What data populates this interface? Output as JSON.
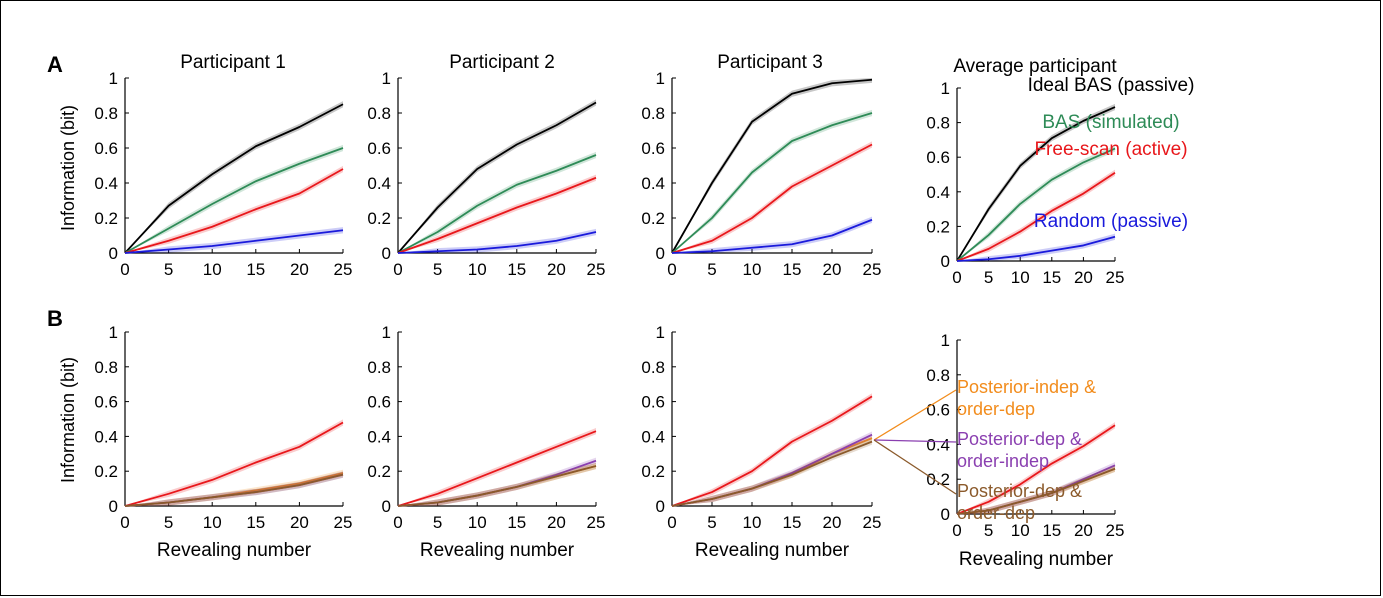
{
  "figure": {
    "panel_labels": [
      "A",
      "B"
    ],
    "ylabel": "Information (bit)",
    "xlabel": "Revealing number",
    "titles": [
      "Participant 1",
      "Participant 2",
      "Participant 3",
      "Average participant"
    ],
    "x_ticks": [
      "0",
      "5",
      "10",
      "15",
      "20",
      "25"
    ],
    "y_ticks": [
      "0",
      "0.2",
      "0.4",
      "0.6",
      "0.8",
      "1"
    ],
    "legend_A": [
      {
        "label": "Ideal BAS (passive)",
        "color": "#000000"
      },
      {
        "label": "BAS (simulated)",
        "color": "#2e8b57"
      },
      {
        "label": "Free-scan (active)",
        "color": "#e8171b"
      },
      {
        "label": "Random (passive)",
        "color": "#1a1adb"
      }
    ],
    "legend_B": [
      {
        "label_lines": [
          "Posterior-indep &",
          "order-dep"
        ],
        "color": "#f28c1c"
      },
      {
        "label_lines": [
          "Posterior-dep &",
          "order-indep"
        ],
        "color": "#8a3fb0"
      },
      {
        "label_lines": [
          "Posterior-dep &",
          "order-dep"
        ],
        "color": "#8b5a2b"
      }
    ]
  },
  "chart_data": [
    {
      "type": "line",
      "panel": "A",
      "title": "Participant 1",
      "xlim": [
        0,
        25
      ],
      "ylim": [
        0,
        1
      ],
      "x": [
        0,
        5,
        10,
        15,
        20,
        25
      ],
      "series": [
        {
          "name": "Ideal BAS (passive)",
          "color": "#000000",
          "values": [
            0,
            0.27,
            0.45,
            0.61,
            0.72,
            0.85
          ]
        },
        {
          "name": "BAS (simulated)",
          "color": "#2e8b57",
          "values": [
            0,
            0.14,
            0.28,
            0.41,
            0.51,
            0.6
          ]
        },
        {
          "name": "Free-scan (active)",
          "color": "#e8171b",
          "values": [
            0,
            0.07,
            0.15,
            0.25,
            0.34,
            0.48
          ]
        },
        {
          "name": "Random (passive)",
          "color": "#1a1adb",
          "values": [
            0,
            0.02,
            0.04,
            0.07,
            0.1,
            0.13
          ]
        }
      ]
    },
    {
      "type": "line",
      "panel": "A",
      "title": "Participant 2",
      "xlim": [
        0,
        25
      ],
      "ylim": [
        0,
        1
      ],
      "x": [
        0,
        5,
        10,
        15,
        20,
        25
      ],
      "series": [
        {
          "name": "Ideal BAS (passive)",
          "color": "#000000",
          "values": [
            0,
            0.26,
            0.48,
            0.62,
            0.73,
            0.86
          ]
        },
        {
          "name": "BAS (simulated)",
          "color": "#2e8b57",
          "values": [
            0,
            0.12,
            0.27,
            0.39,
            0.47,
            0.56
          ]
        },
        {
          "name": "Free-scan (active)",
          "color": "#e8171b",
          "values": [
            0,
            0.08,
            0.17,
            0.26,
            0.34,
            0.43
          ]
        },
        {
          "name": "Random (passive)",
          "color": "#1a1adb",
          "values": [
            0,
            0.01,
            0.02,
            0.04,
            0.07,
            0.12
          ]
        }
      ]
    },
    {
      "type": "line",
      "panel": "A",
      "title": "Participant 3",
      "xlim": [
        0,
        25
      ],
      "ylim": [
        0,
        1
      ],
      "x": [
        0,
        5,
        10,
        15,
        20,
        25
      ],
      "series": [
        {
          "name": "Ideal BAS (passive)",
          "color": "#000000",
          "values": [
            0,
            0.4,
            0.75,
            0.91,
            0.97,
            0.99
          ]
        },
        {
          "name": "BAS (simulated)",
          "color": "#2e8b57",
          "values": [
            0,
            0.2,
            0.46,
            0.64,
            0.73,
            0.8
          ]
        },
        {
          "name": "Free-scan (active)",
          "color": "#e8171b",
          "values": [
            0,
            0.07,
            0.2,
            0.38,
            0.5,
            0.62
          ]
        },
        {
          "name": "Random (passive)",
          "color": "#1a1adb",
          "values": [
            0,
            0.01,
            0.03,
            0.05,
            0.1,
            0.19
          ]
        }
      ]
    },
    {
      "type": "line",
      "panel": "A",
      "title": "Average participant",
      "xlim": [
        0,
        25
      ],
      "ylim": [
        0,
        1
      ],
      "x": [
        0,
        5,
        10,
        15,
        20,
        25
      ],
      "series": [
        {
          "name": "Ideal BAS (passive)",
          "color": "#000000",
          "values": [
            0,
            0.3,
            0.55,
            0.71,
            0.81,
            0.89
          ]
        },
        {
          "name": "BAS (simulated)",
          "color": "#2e8b57",
          "values": [
            0,
            0.15,
            0.33,
            0.47,
            0.57,
            0.65
          ]
        },
        {
          "name": "Free-scan (active)",
          "color": "#e8171b",
          "values": [
            0,
            0.07,
            0.17,
            0.29,
            0.39,
            0.51
          ]
        },
        {
          "name": "Random (passive)",
          "color": "#1a1adb",
          "values": [
            0,
            0.01,
            0.03,
            0.06,
            0.09,
            0.14
          ]
        }
      ]
    },
    {
      "type": "line",
      "panel": "B",
      "title": "",
      "xlim": [
        0,
        25
      ],
      "ylim": [
        0,
        1
      ],
      "x": [
        0,
        5,
        10,
        15,
        20,
        25
      ],
      "series": [
        {
          "name": "Free-scan (active)",
          "color": "#e8171b",
          "values": [
            0,
            0.07,
            0.15,
            0.25,
            0.34,
            0.48
          ]
        },
        {
          "name": "Posterior-indep & order-dep",
          "color": "#f28c1c",
          "values": [
            0,
            0.02,
            0.05,
            0.09,
            0.13,
            0.19
          ]
        },
        {
          "name": "Posterior-dep & order-indep",
          "color": "#8a3fb0",
          "values": [
            0,
            0.02,
            0.05,
            0.08,
            0.12,
            0.18
          ]
        },
        {
          "name": "Posterior-dep & order-dep",
          "color": "#8b5a2b",
          "values": [
            0,
            0.02,
            0.05,
            0.08,
            0.12,
            0.18
          ]
        }
      ]
    },
    {
      "type": "line",
      "panel": "B",
      "title": "",
      "xlim": [
        0,
        25
      ],
      "ylim": [
        0,
        1
      ],
      "x": [
        0,
        5,
        10,
        15,
        20,
        25
      ],
      "series": [
        {
          "name": "Free-scan (active)",
          "color": "#e8171b",
          "values": [
            0,
            0.07,
            0.16,
            0.25,
            0.34,
            0.43
          ]
        },
        {
          "name": "Posterior-indep & order-dep",
          "color": "#f28c1c",
          "values": [
            0,
            0.02,
            0.06,
            0.11,
            0.17,
            0.23
          ]
        },
        {
          "name": "Posterior-dep & order-indep",
          "color": "#8a3fb0",
          "values": [
            0,
            0.02,
            0.06,
            0.11,
            0.18,
            0.26
          ]
        },
        {
          "name": "Posterior-dep & order-dep",
          "color": "#8b5a2b",
          "values": [
            0,
            0.02,
            0.06,
            0.11,
            0.17,
            0.23
          ]
        }
      ]
    },
    {
      "type": "line",
      "panel": "B",
      "title": "",
      "xlim": [
        0,
        25
      ],
      "ylim": [
        0,
        1
      ],
      "x": [
        0,
        5,
        10,
        15,
        20,
        25
      ],
      "series": [
        {
          "name": "Free-scan (active)",
          "color": "#e8171b",
          "values": [
            0,
            0.08,
            0.2,
            0.37,
            0.49,
            0.63
          ]
        },
        {
          "name": "Posterior-indep & order-dep",
          "color": "#f28c1c",
          "values": [
            0,
            0.04,
            0.1,
            0.18,
            0.3,
            0.39
          ]
        },
        {
          "name": "Posterior-dep & order-indep",
          "color": "#8a3fb0",
          "values": [
            0,
            0.04,
            0.1,
            0.19,
            0.3,
            0.41
          ]
        },
        {
          "name": "Posterior-dep & order-dep",
          "color": "#8b5a2b",
          "values": [
            0,
            0.04,
            0.1,
            0.18,
            0.28,
            0.37
          ]
        }
      ]
    },
    {
      "type": "line",
      "panel": "B",
      "title": "",
      "xlim": [
        0,
        25
      ],
      "ylim": [
        0,
        1
      ],
      "x": [
        0,
        5,
        10,
        15,
        20,
        25
      ],
      "series": [
        {
          "name": "Free-scan (active)",
          "color": "#e8171b",
          "values": [
            0,
            0.07,
            0.17,
            0.29,
            0.39,
            0.51
          ]
        },
        {
          "name": "Posterior-indep & order-dep",
          "color": "#f28c1c",
          "values": [
            0,
            0.02,
            0.07,
            0.12,
            0.19,
            0.26
          ]
        },
        {
          "name": "Posterior-dep & order-indep",
          "color": "#8a3fb0",
          "values": [
            0,
            0.02,
            0.07,
            0.12,
            0.2,
            0.28
          ]
        },
        {
          "name": "Posterior-dep & order-dep",
          "color": "#8b5a2b",
          "values": [
            0,
            0.02,
            0.07,
            0.12,
            0.19,
            0.26
          ]
        }
      ]
    }
  ]
}
